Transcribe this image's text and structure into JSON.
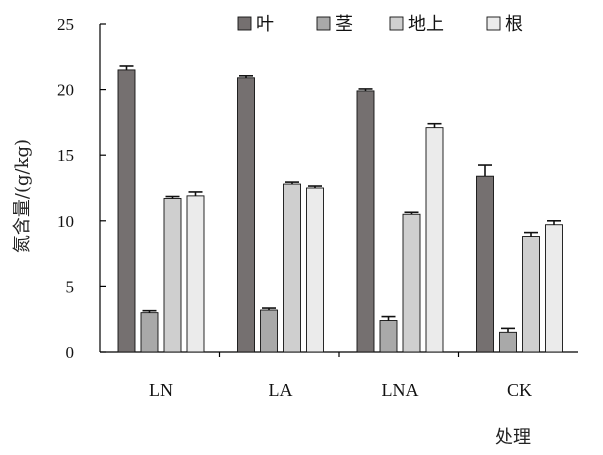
{
  "chart_data": {
    "type": "bar",
    "title": "",
    "xlabel": "处理",
    "ylabel": "氮含量/(g/kg)",
    "ylim": [
      0,
      25
    ],
    "yticks": [
      0,
      5,
      10,
      15,
      20,
      25
    ],
    "categories": [
      "LN",
      "LA",
      "LNA",
      "CK"
    ],
    "series": [
      {
        "name": "叶",
        "color": "#757070",
        "values": [
          21.5,
          20.9,
          19.9,
          13.4
        ],
        "errors": [
          0.3,
          0.15,
          0.15,
          0.85
        ]
      },
      {
        "name": "茎",
        "color": "#a9a9a9",
        "values": [
          3.0,
          3.2,
          2.4,
          1.5
        ],
        "errors": [
          0.15,
          0.15,
          0.3,
          0.3
        ]
      },
      {
        "name": "地上",
        "color": "#cfcfcf",
        "values": [
          11.7,
          12.8,
          10.5,
          8.8
        ],
        "errors": [
          0.15,
          0.15,
          0.15,
          0.3
        ]
      },
      {
        "name": "根",
        "color": "#ebebeb",
        "values": [
          11.9,
          12.5,
          17.1,
          9.7
        ],
        "errors": [
          0.3,
          0.15,
          0.3,
          0.3
        ]
      }
    ],
    "legend_position": "top-right",
    "grid": false
  }
}
